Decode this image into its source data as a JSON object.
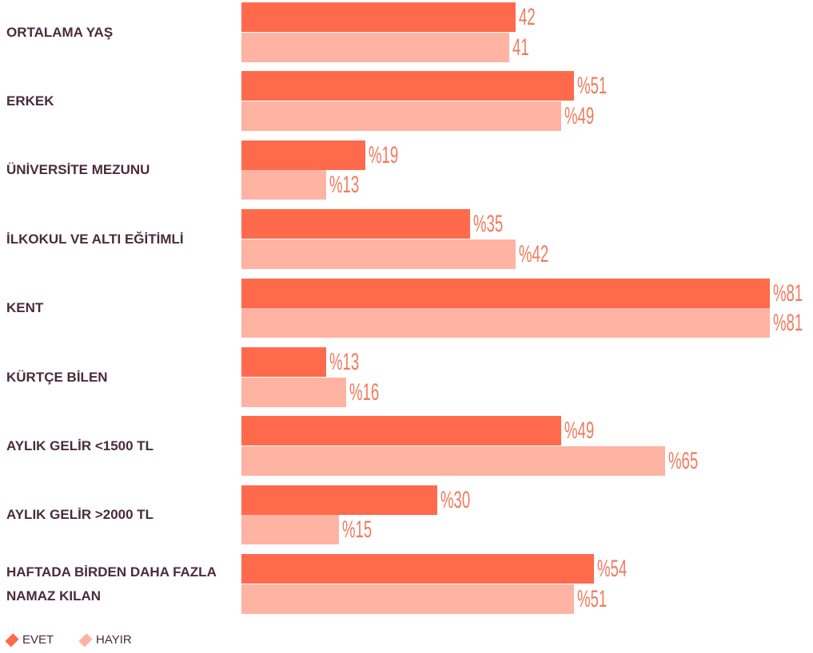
{
  "chart_data": {
    "type": "bar",
    "orientation": "horizontal",
    "categories": [
      "ORTALAMA YAŞ",
      "ERKEK",
      "ÜNİVERSİTE MEZUNU",
      "İLKOKUL VE ALTI EĞİTİMLİ",
      "KENT",
      "KÜRTÇE BİLEN",
      "AYLIK GELİR <1500 TL",
      "AYLIK GELİR >2000 TL",
      "HAFTADA BİRDEN DAHA FAZLA NAMAZ KILAN"
    ],
    "series": [
      {
        "name": "EVET",
        "color": "#ff6a4d",
        "values": [
          42,
          51,
          19,
          35,
          81,
          13,
          49,
          30,
          54
        ],
        "value_labels": [
          "42",
          "%51",
          "%19",
          "%35",
          "%81",
          "%13",
          "%49",
          "%30",
          "%54"
        ]
      },
      {
        "name": "HAYIR",
        "color": "#ffb3a3",
        "values": [
          41,
          49,
          13,
          42,
          81,
          16,
          65,
          15,
          51
        ],
        "value_labels": [
          "41",
          "%49",
          "%13",
          "%42",
          "%81",
          "%16",
          "%65",
          "%15",
          "%51"
        ]
      }
    ],
    "legend": "bottom-left"
  }
}
